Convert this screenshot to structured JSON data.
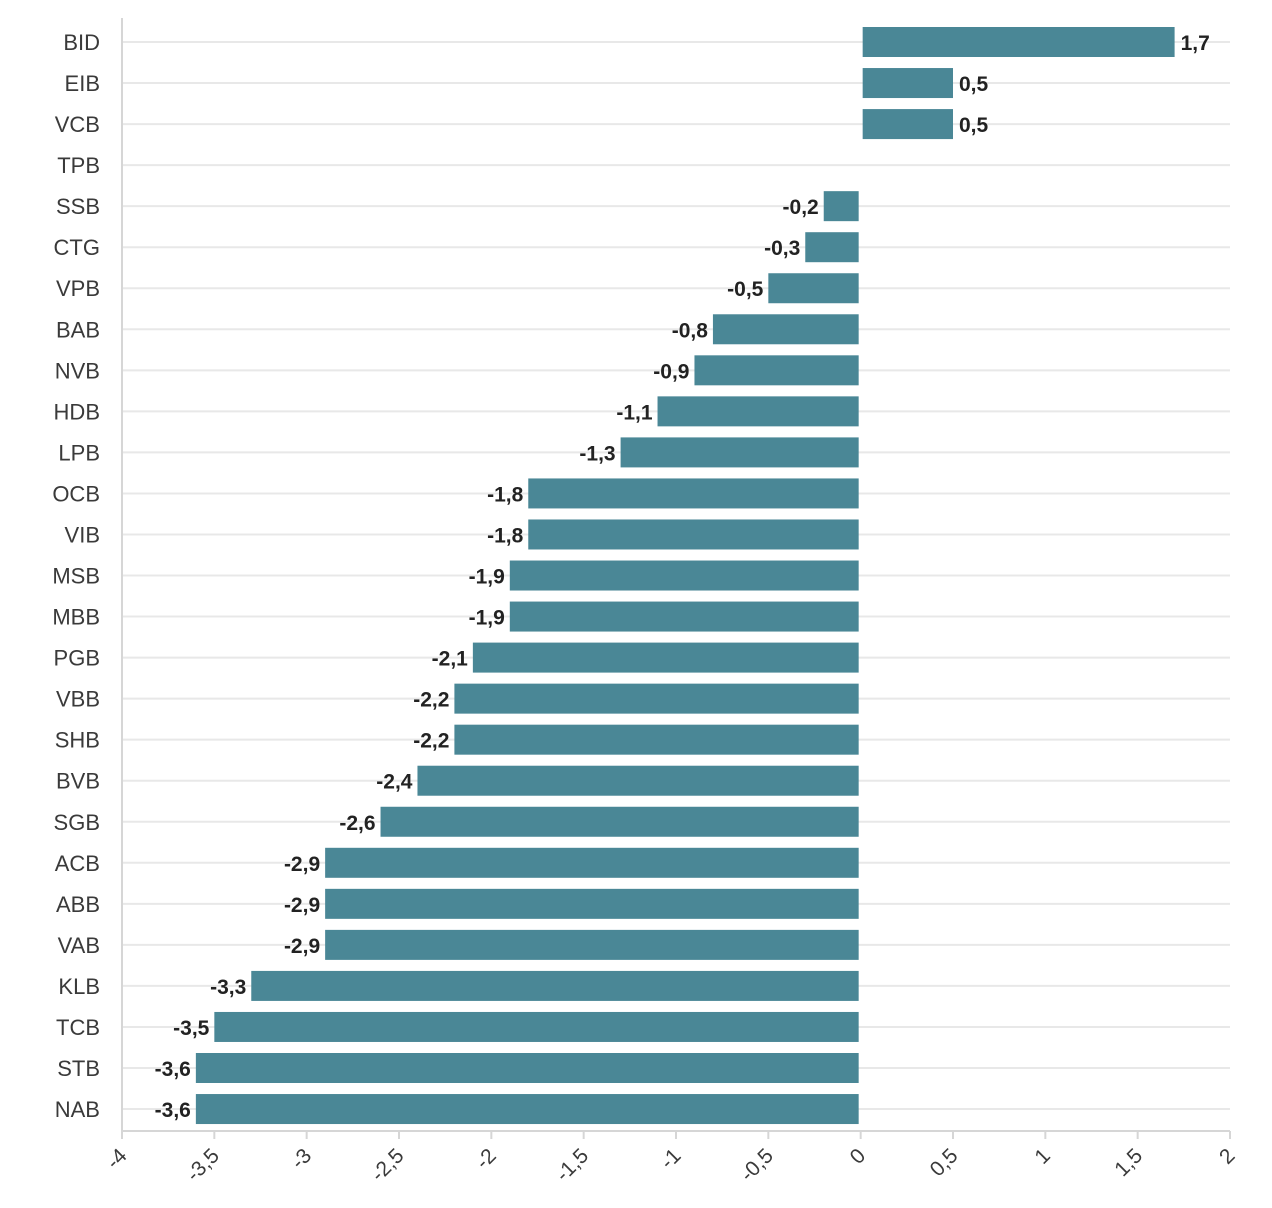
{
  "chart_data": {
    "type": "bar",
    "orientation": "horizontal",
    "categories": [
      "BID",
      "EIB",
      "VCB",
      "TPB",
      "SSB",
      "CTG",
      "VPB",
      "BAB",
      "NVB",
      "HDB",
      "LPB",
      "OCB",
      "VIB",
      "MSB",
      "MBB",
      "PGB",
      "VBB",
      "SHB",
      "BVB",
      "SGB",
      "ACB",
      "ABB",
      "VAB",
      "KLB",
      "TCB",
      "STB",
      "NAB"
    ],
    "values": [
      1.7,
      0.5,
      0.5,
      null,
      -0.2,
      -0.3,
      -0.5,
      -0.8,
      -0.9,
      -1.1,
      -1.3,
      -1.8,
      -1.8,
      -1.9,
      -1.9,
      -2.1,
      -2.2,
      -2.2,
      -2.4,
      -2.6,
      -2.9,
      -2.9,
      -2.9,
      -3.3,
      -3.5,
      -3.6,
      -3.6
    ],
    "value_labels": [
      "1,7",
      "0,5",
      "0,5",
      "",
      "-0,2",
      "-0,3",
      "-0,5",
      "-0,8",
      "-0,9",
      "-1,1",
      "-1,3",
      "-1,8",
      "-1,8",
      "-1,9",
      "-1,9",
      "-2,1",
      "-2,2",
      "-2,2",
      "-2,4",
      "-2,6",
      "-2,9",
      "-2,9",
      "-2,9",
      "-3,3",
      "-3,5",
      "-3,6",
      "-3,6"
    ],
    "xlim": [
      -4,
      2
    ],
    "x_ticks": [
      -4,
      -3.5,
      -3,
      -2.5,
      -2,
      -1.5,
      -1,
      -0.5,
      0,
      0.5,
      1,
      1.5,
      2
    ],
    "x_tick_labels": [
      "-4",
      "-3,5",
      "-3",
      "-2,5",
      "-2",
      "-1,5",
      "-1",
      "-0,5",
      "0",
      "0,5",
      "1",
      "1,5",
      "2"
    ],
    "title": "",
    "xlabel": "",
    "ylabel": "",
    "grid": "horizontal",
    "legend": "none",
    "bar_color": "#4a8796"
  }
}
